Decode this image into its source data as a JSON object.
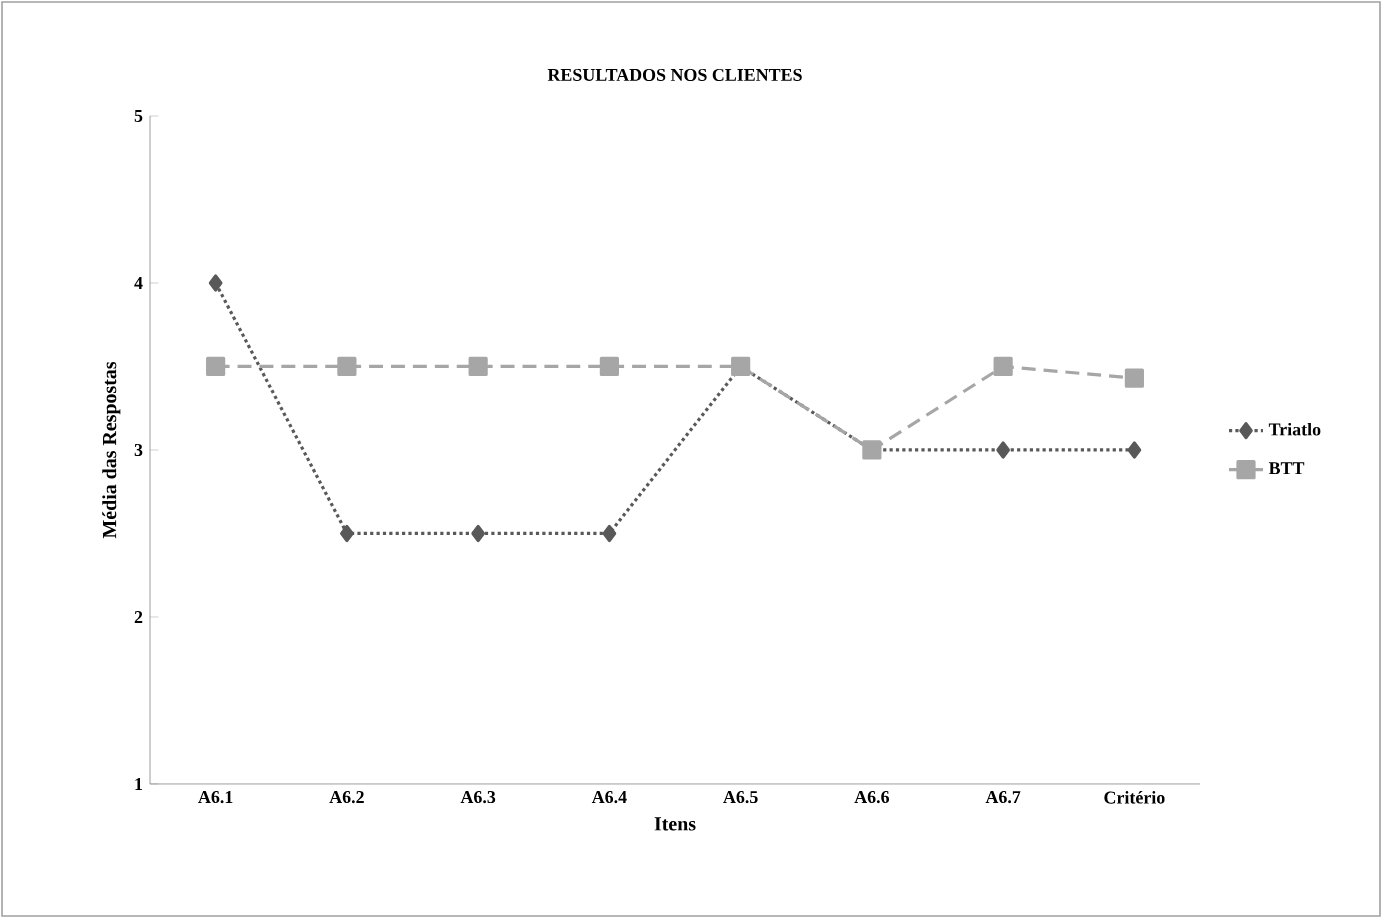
{
  "chart_data": {
    "type": "line",
    "title": "RESULTADOS NOS CLIENTES",
    "xlabel": "Itens",
    "ylabel": "Média das Respostas",
    "categories": [
      "A6.1",
      "A6.2",
      "A6.3",
      "A6.4",
      "A6.5",
      "A6.6",
      "A6.7",
      "Critério"
    ],
    "series": [
      {
        "name": "Triatlo",
        "color": "#595959",
        "marker": "diamond",
        "line_style": "dotted",
        "values": [
          4,
          2.5,
          2.5,
          2.5,
          3.5,
          3,
          3,
          3
        ]
      },
      {
        "name": "BTT",
        "color": "#a6a6a6",
        "marker": "square",
        "line_style": "dashed",
        "values": [
          3.5,
          3.5,
          3.5,
          3.5,
          3.5,
          3,
          3.5,
          3.43
        ]
      }
    ],
    "ylim": [
      1,
      5
    ],
    "yticks": [
      1,
      2,
      3,
      4,
      5
    ],
    "grid": false,
    "legend": "right"
  }
}
